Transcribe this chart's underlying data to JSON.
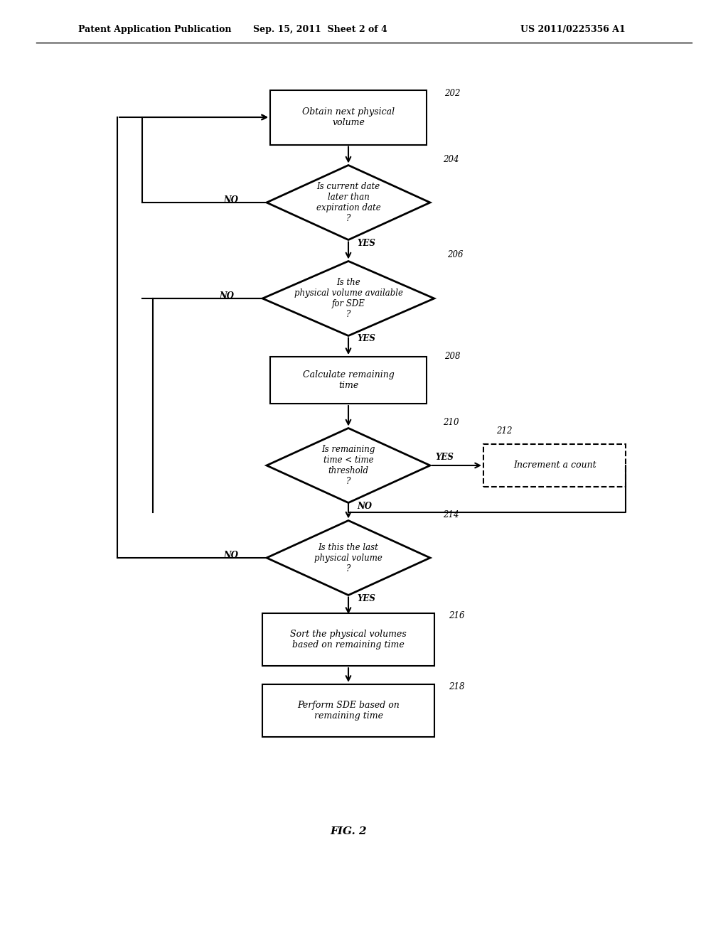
{
  "bg_color": "#ffffff",
  "header_left": "Patent Application Publication",
  "header_mid": "Sep. 15, 2011  Sheet 2 of 4",
  "header_right": "US 2011/0225356 A1",
  "footer_label": "FIG. 2",
  "nodes": {
    "202": {
      "type": "rect",
      "label": "Obtain next physical\nvolume",
      "ref": "202"
    },
    "204": {
      "type": "diamond",
      "label": "Is current date\nlater than\nexpiration date\n?",
      "ref": "204"
    },
    "206": {
      "type": "diamond",
      "label": "Is the\nphysical volume available\nfor SDE\n?",
      "ref": "206"
    },
    "208": {
      "type": "rect",
      "label": "Calculate remaining\ntime",
      "ref": "208"
    },
    "210": {
      "type": "diamond",
      "label": "Is remaining\ntime < time\nthreshold\n?",
      "ref": "210"
    },
    "212": {
      "type": "rect_dash",
      "label": "Increment a count",
      "ref": "212"
    },
    "214": {
      "type": "diamond",
      "label": "Is this the last\nphysical volume\n?",
      "ref": "214"
    },
    "216": {
      "type": "rect",
      "label": "Sort the physical volumes\nbased on remaining time",
      "ref": "216"
    },
    "218": {
      "type": "rect",
      "label": "Perform SDE based on\nremaining time",
      "ref": "218"
    }
  }
}
